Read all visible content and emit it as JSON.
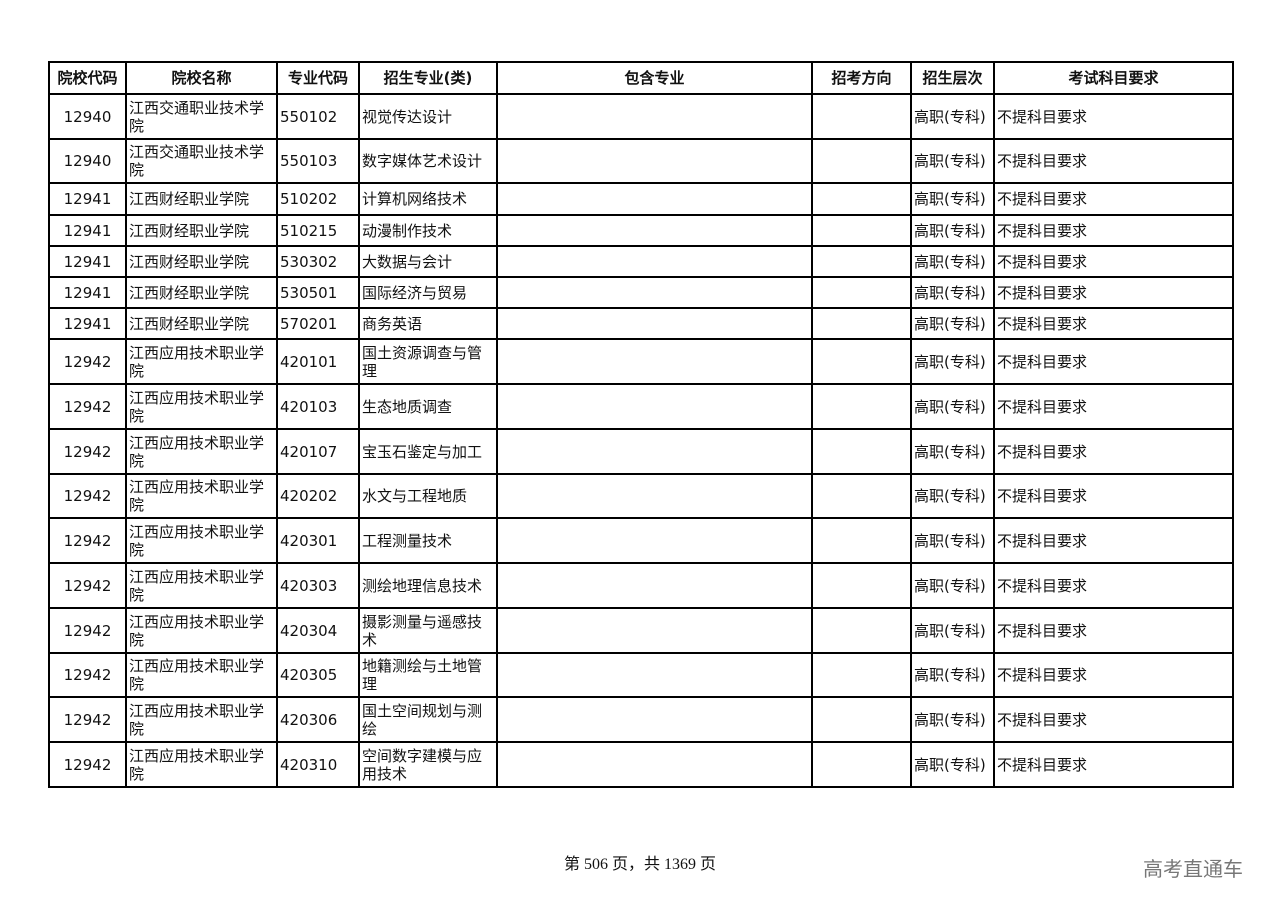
{
  "table": {
    "headers": [
      "院校代码",
      "院校名称",
      "专业代码",
      "招生专业(类)",
      "包含专业",
      "招考方向",
      "招生层次",
      "考试科目要求"
    ],
    "rows": [
      [
        "12940",
        "江西交通职业技术学院",
        "550102",
        "视觉传达设计",
        "",
        "",
        "高职(专科)",
        "不提科目要求"
      ],
      [
        "12940",
        "江西交通职业技术学院",
        "550103",
        "数字媒体艺术设计",
        "",
        "",
        "高职(专科)",
        "不提科目要求"
      ],
      [
        "12941",
        "江西财经职业学院",
        "510202",
        "计算机网络技术",
        "",
        "",
        "高职(专科)",
        "不提科目要求"
      ],
      [
        "12941",
        "江西财经职业学院",
        "510215",
        "动漫制作技术",
        "",
        "",
        "高职(专科)",
        "不提科目要求"
      ],
      [
        "12941",
        "江西财经职业学院",
        "530302",
        "大数据与会计",
        "",
        "",
        "高职(专科)",
        "不提科目要求"
      ],
      [
        "12941",
        "江西财经职业学院",
        "530501",
        "国际经济与贸易",
        "",
        "",
        "高职(专科)",
        "不提科目要求"
      ],
      [
        "12941",
        "江西财经职业学院",
        "570201",
        "商务英语",
        "",
        "",
        "高职(专科)",
        "不提科目要求"
      ],
      [
        "12942",
        "江西应用技术职业学院",
        "420101",
        "国土资源调查与管理",
        "",
        "",
        "高职(专科)",
        "不提科目要求"
      ],
      [
        "12942",
        "江西应用技术职业学院",
        "420103",
        "生态地质调查",
        "",
        "",
        "高职(专科)",
        "不提科目要求"
      ],
      [
        "12942",
        "江西应用技术职业学院",
        "420107",
        "宝玉石鉴定与加工",
        "",
        "",
        "高职(专科)",
        "不提科目要求"
      ],
      [
        "12942",
        "江西应用技术职业学院",
        "420202",
        "水文与工程地质",
        "",
        "",
        "高职(专科)",
        "不提科目要求"
      ],
      [
        "12942",
        "江西应用技术职业学院",
        "420301",
        "工程测量技术",
        "",
        "",
        "高职(专科)",
        "不提科目要求"
      ],
      [
        "12942",
        "江西应用技术职业学院",
        "420303",
        "测绘地理信息技术",
        "",
        "",
        "高职(专科)",
        "不提科目要求"
      ],
      [
        "12942",
        "江西应用技术职业学院",
        "420304",
        "摄影测量与遥感技术",
        "",
        "",
        "高职(专科)",
        "不提科目要求"
      ],
      [
        "12942",
        "江西应用技术职业学院",
        "420305",
        "地籍测绘与土地管理",
        "",
        "",
        "高职(专科)",
        "不提科目要求"
      ],
      [
        "12942",
        "江西应用技术职业学院",
        "420306",
        "国土空间规划与测绘",
        "",
        "",
        "高职(专科)",
        "不提科目要求"
      ],
      [
        "12942",
        "江西应用技术职业学院",
        "420310",
        "空间数字建模与应用技术",
        "",
        "",
        "高职(专科)",
        "不提科目要求"
      ]
    ]
  },
  "footer": {
    "page_text": "第 506 页，共 1369 页"
  },
  "watermark": "高考直通车"
}
